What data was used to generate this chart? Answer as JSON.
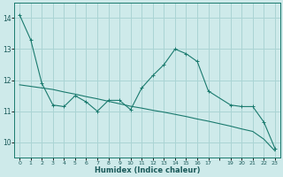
{
  "xlabel": "Humidex (Indice chaleur)",
  "background_color": "#ceeaea",
  "grid_color": "#aad4d4",
  "line_color": "#1a7a6e",
  "xlim": [
    -0.5,
    23.5
  ],
  "ylim": [
    9.5,
    14.5
  ],
  "yticks": [
    10,
    11,
    12,
    13,
    14
  ],
  "x_ticks": [
    0,
    1,
    2,
    3,
    4,
    5,
    6,
    7,
    8,
    9,
    10,
    11,
    12,
    13,
    14,
    15,
    16,
    17,
    19,
    20,
    21,
    22,
    23
  ],
  "series1_x": [
    0,
    1,
    2,
    3,
    4,
    5,
    6,
    7,
    8,
    9,
    10,
    11,
    12,
    13,
    14,
    15,
    16,
    17,
    19,
    20,
    21,
    22,
    23
  ],
  "series1_y": [
    14.1,
    13.3,
    11.9,
    11.2,
    11.15,
    11.5,
    11.3,
    11.0,
    11.35,
    11.35,
    11.05,
    11.75,
    12.15,
    12.5,
    13.0,
    12.85,
    12.6,
    11.65,
    11.2,
    11.15,
    11.15,
    10.65,
    9.8
  ],
  "series2_x": [
    0,
    1,
    2,
    3,
    4,
    5,
    6,
    7,
    8,
    9,
    10,
    11,
    12,
    13,
    14,
    15,
    16,
    17,
    19,
    20,
    21,
    22,
    23
  ],
  "series2_y": [
    11.85,
    11.8,
    11.75,
    11.7,
    11.62,
    11.55,
    11.47,
    11.4,
    11.32,
    11.24,
    11.16,
    11.1,
    11.03,
    10.97,
    10.9,
    10.83,
    10.75,
    10.68,
    10.52,
    10.43,
    10.35,
    10.1,
    9.72
  ]
}
